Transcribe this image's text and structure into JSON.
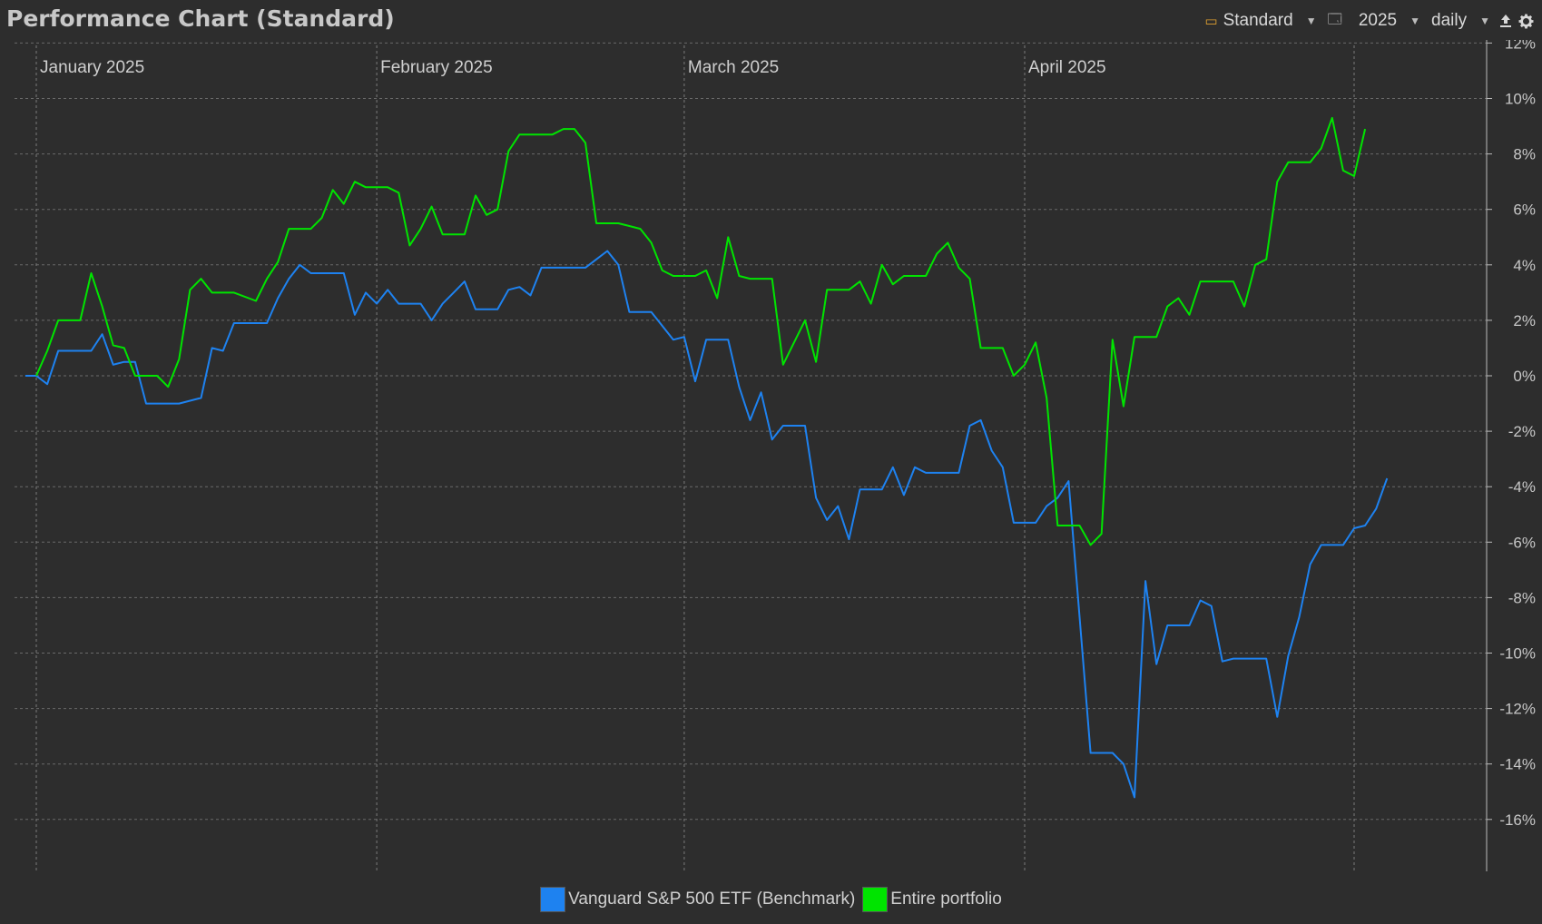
{
  "window": {
    "title": "Performance Chart (Standard)"
  },
  "toolbar": {
    "view_label": "Standard",
    "year_label": "2025",
    "interval_label": "daily",
    "icons": [
      "calendar-icon",
      "window-icon",
      "export-icon",
      "gear-icon"
    ]
  },
  "colors": {
    "background": "#2d2d2d",
    "grid": "#6a6a6a",
    "benchmark": "#1e82f0",
    "portfolio": "#00e400"
  },
  "chart_data": {
    "type": "line",
    "title": "Performance Chart (Standard)",
    "xlabel": "",
    "ylabel": "",
    "ylim": [
      -18,
      12
    ],
    "xlim": [
      "2024-12-31",
      "2025-05-02"
    ],
    "y_ticks": [
      "12%",
      "10%",
      "8%",
      "6%",
      "4%",
      "2%",
      "0%",
      "-2%",
      "-4%",
      "-6%",
      "-8%",
      "-10%",
      "-12%",
      "-14%",
      "-16%"
    ],
    "x_ticks": [
      {
        "date": "2025-01-01",
        "label": "January 2025"
      },
      {
        "date": "2025-02-01",
        "label": "February 2025"
      },
      {
        "date": "2025-03-01",
        "label": "March 2025"
      },
      {
        "date": "2025-04-01",
        "label": "April 2025"
      },
      {
        "date": "2025-05-01",
        "label": ""
      }
    ],
    "grid": true,
    "legend_position": "bottom",
    "series": [
      {
        "name": "Vanguard S&P 500 ETF (Benchmark)",
        "color": "#1e82f0",
        "points": [
          [
            "2024-12-31",
            0.0
          ],
          [
            "2025-01-01",
            0.0
          ],
          [
            "2025-01-02",
            -0.3
          ],
          [
            "2025-01-03",
            0.9
          ],
          [
            "2025-01-05",
            0.9
          ],
          [
            "2025-01-06",
            0.9
          ],
          [
            "2025-01-07",
            1.5
          ],
          [
            "2025-01-08",
            0.4
          ],
          [
            "2025-01-09",
            0.5
          ],
          [
            "2025-01-10",
            0.5
          ],
          [
            "2025-01-11",
            -1.0
          ],
          [
            "2025-01-13",
            -1.0
          ],
          [
            "2025-01-14",
            -1.0
          ],
          [
            "2025-01-16",
            -0.8
          ],
          [
            "2025-01-17",
            1.0
          ],
          [
            "2025-01-18",
            0.9
          ],
          [
            "2025-01-19",
            1.9
          ],
          [
            "2025-01-22",
            1.9
          ],
          [
            "2025-01-23",
            2.8
          ],
          [
            "2025-01-24",
            3.5
          ],
          [
            "2025-01-25",
            4.0
          ],
          [
            "2025-01-26",
            3.7
          ],
          [
            "2025-01-28",
            3.7
          ],
          [
            "2025-01-29",
            3.7
          ],
          [
            "2025-01-30",
            2.2
          ],
          [
            "2025-01-31",
            3.0
          ],
          [
            "2025-02-01",
            2.6
          ],
          [
            "2025-02-02",
            3.1
          ],
          [
            "2025-02-03",
            2.6
          ],
          [
            "2025-02-05",
            2.6
          ],
          [
            "2025-02-06",
            2.0
          ],
          [
            "2025-02-07",
            2.6
          ],
          [
            "2025-02-08",
            3.0
          ],
          [
            "2025-02-09",
            3.4
          ],
          [
            "2025-02-10",
            2.4
          ],
          [
            "2025-02-12",
            2.4
          ],
          [
            "2025-02-13",
            3.1
          ],
          [
            "2025-02-14",
            3.2
          ],
          [
            "2025-02-15",
            2.9
          ],
          [
            "2025-02-16",
            3.9
          ],
          [
            "2025-02-20",
            3.9
          ],
          [
            "2025-02-21",
            4.2
          ],
          [
            "2025-02-22",
            4.5
          ],
          [
            "2025-02-23",
            4.0
          ],
          [
            "2025-02-24",
            2.3
          ],
          [
            "2025-02-26",
            2.3
          ],
          [
            "2025-02-27",
            1.8
          ],
          [
            "2025-02-28",
            1.3
          ],
          [
            "2025-03-01",
            1.4
          ],
          [
            "2025-03-02",
            -0.2
          ],
          [
            "2025-03-03",
            1.3
          ],
          [
            "2025-03-05",
            1.3
          ],
          [
            "2025-03-06",
            -0.4
          ],
          [
            "2025-03-07",
            -1.6
          ],
          [
            "2025-03-08",
            -0.6
          ],
          [
            "2025-03-09",
            -2.3
          ],
          [
            "2025-03-10",
            -1.8
          ],
          [
            "2025-03-12",
            -1.8
          ],
          [
            "2025-03-13",
            -4.4
          ],
          [
            "2025-03-14",
            -5.2
          ],
          [
            "2025-03-15",
            -4.7
          ],
          [
            "2025-03-16",
            -5.9
          ],
          [
            "2025-03-17",
            -4.1
          ],
          [
            "2025-03-19",
            -4.1
          ],
          [
            "2025-03-20",
            -3.3
          ],
          [
            "2025-03-21",
            -4.3
          ],
          [
            "2025-03-22",
            -3.3
          ],
          [
            "2025-03-23",
            -3.5
          ],
          [
            "2025-03-26",
            -3.5
          ],
          [
            "2025-03-27",
            -1.8
          ],
          [
            "2025-03-28",
            -1.6
          ],
          [
            "2025-03-29",
            -2.7
          ],
          [
            "2025-03-30",
            -3.3
          ],
          [
            "2025-03-31",
            -5.3
          ],
          [
            "2025-04-02",
            -5.3
          ],
          [
            "2025-04-03",
            -4.7
          ],
          [
            "2025-04-04",
            -4.4
          ],
          [
            "2025-04-05",
            -3.8
          ],
          [
            "2025-04-07",
            -13.6
          ],
          [
            "2025-04-09",
            -13.6
          ],
          [
            "2025-04-10",
            -14.0
          ],
          [
            "2025-04-11",
            -15.2
          ],
          [
            "2025-04-12",
            -7.4
          ],
          [
            "2025-04-13",
            -10.4
          ],
          [
            "2025-04-14",
            -9.0
          ],
          [
            "2025-04-16",
            -9.0
          ],
          [
            "2025-04-17",
            -8.1
          ],
          [
            "2025-04-18",
            -8.3
          ],
          [
            "2025-04-19",
            -10.3
          ],
          [
            "2025-04-20",
            -10.2
          ],
          [
            "2025-04-23",
            -10.2
          ],
          [
            "2025-04-24",
            -12.3
          ],
          [
            "2025-04-25",
            -10.1
          ],
          [
            "2025-04-26",
            -8.7
          ],
          [
            "2025-04-27",
            -6.8
          ],
          [
            "2025-04-28",
            -6.1
          ],
          [
            "2025-04-30",
            -6.1
          ],
          [
            "2025-05-01",
            -5.5
          ],
          [
            "2025-05-02",
            -5.4
          ],
          [
            "2025-05-03",
            -4.8
          ],
          [
            "2025-05-04",
            -3.7
          ]
        ]
      },
      {
        "name": "Entire portfolio",
        "color": "#00e400",
        "points": [
          [
            "2025-01-01",
            0.0
          ],
          [
            "2025-01-02",
            0.9
          ],
          [
            "2025-01-03",
            2.0
          ],
          [
            "2025-01-05",
            2.0
          ],
          [
            "2025-01-06",
            3.7
          ],
          [
            "2025-01-07",
            2.5
          ],
          [
            "2025-01-08",
            1.1
          ],
          [
            "2025-01-09",
            1.0
          ],
          [
            "2025-01-10",
            0.0
          ],
          [
            "2025-01-12",
            0.0
          ],
          [
            "2025-01-13",
            -0.4
          ],
          [
            "2025-01-14",
            0.6
          ],
          [
            "2025-01-15",
            3.1
          ],
          [
            "2025-01-16",
            3.5
          ],
          [
            "2025-01-17",
            3.0
          ],
          [
            "2025-01-19",
            3.0
          ],
          [
            "2025-01-21",
            2.7
          ],
          [
            "2025-01-22",
            3.5
          ],
          [
            "2025-01-23",
            4.1
          ],
          [
            "2025-01-24",
            5.3
          ],
          [
            "2025-01-26",
            5.3
          ],
          [
            "2025-01-27",
            5.7
          ],
          [
            "2025-01-28",
            6.7
          ],
          [
            "2025-01-29",
            6.2
          ],
          [
            "2025-01-30",
            7.0
          ],
          [
            "2025-01-31",
            6.8
          ],
          [
            "2025-02-02",
            6.8
          ],
          [
            "2025-02-03",
            6.6
          ],
          [
            "2025-02-04",
            4.7
          ],
          [
            "2025-02-05",
            5.3
          ],
          [
            "2025-02-06",
            6.1
          ],
          [
            "2025-02-07",
            5.1
          ],
          [
            "2025-02-09",
            5.1
          ],
          [
            "2025-02-10",
            6.5
          ],
          [
            "2025-02-11",
            5.8
          ],
          [
            "2025-02-12",
            6.0
          ],
          [
            "2025-02-13",
            8.1
          ],
          [
            "2025-02-14",
            8.7
          ],
          [
            "2025-02-17",
            8.7
          ],
          [
            "2025-02-18",
            8.9
          ],
          [
            "2025-02-19",
            8.9
          ],
          [
            "2025-02-20",
            8.4
          ],
          [
            "2025-02-21",
            5.5
          ],
          [
            "2025-02-23",
            5.5
          ],
          [
            "2025-02-24",
            5.4
          ],
          [
            "2025-02-25",
            5.3
          ],
          [
            "2025-02-26",
            4.8
          ],
          [
            "2025-02-27",
            3.8
          ],
          [
            "2025-02-28",
            3.6
          ],
          [
            "2025-03-02",
            3.6
          ],
          [
            "2025-03-03",
            3.8
          ],
          [
            "2025-03-04",
            2.8
          ],
          [
            "2025-03-05",
            5.0
          ],
          [
            "2025-03-06",
            3.6
          ],
          [
            "2025-03-07",
            3.5
          ],
          [
            "2025-03-09",
            3.5
          ],
          [
            "2025-03-10",
            0.4
          ],
          [
            "2025-03-11",
            1.2
          ],
          [
            "2025-03-12",
            2.0
          ],
          [
            "2025-03-13",
            0.5
          ],
          [
            "2025-03-14",
            3.1
          ],
          [
            "2025-03-16",
            3.1
          ],
          [
            "2025-03-17",
            3.4
          ],
          [
            "2025-03-18",
            2.6
          ],
          [
            "2025-03-19",
            4.0
          ],
          [
            "2025-03-20",
            3.3
          ],
          [
            "2025-03-21",
            3.6
          ],
          [
            "2025-03-23",
            3.6
          ],
          [
            "2025-03-24",
            4.4
          ],
          [
            "2025-03-25",
            4.8
          ],
          [
            "2025-03-26",
            3.9
          ],
          [
            "2025-03-27",
            3.5
          ],
          [
            "2025-03-28",
            1.0
          ],
          [
            "2025-03-30",
            1.0
          ],
          [
            "2025-03-31",
            0.0
          ],
          [
            "2025-04-01",
            0.4
          ],
          [
            "2025-04-02",
            1.2
          ],
          [
            "2025-04-03",
            -0.8
          ],
          [
            "2025-04-04",
            -5.4
          ],
          [
            "2025-04-06",
            -5.4
          ],
          [
            "2025-04-07",
            -6.1
          ],
          [
            "2025-04-08",
            -5.7
          ],
          [
            "2025-04-09",
            1.3
          ],
          [
            "2025-04-10",
            -1.1
          ],
          [
            "2025-04-11",
            1.4
          ],
          [
            "2025-04-13",
            1.4
          ],
          [
            "2025-04-14",
            2.5
          ],
          [
            "2025-04-15",
            2.8
          ],
          [
            "2025-04-16",
            2.2
          ],
          [
            "2025-04-17",
            3.4
          ],
          [
            "2025-04-20",
            3.4
          ],
          [
            "2025-04-21",
            2.5
          ],
          [
            "2025-04-22",
            4.0
          ],
          [
            "2025-04-23",
            4.2
          ],
          [
            "2025-04-24",
            7.0
          ],
          [
            "2025-04-25",
            7.7
          ],
          [
            "2025-04-27",
            7.7
          ],
          [
            "2025-04-28",
            8.2
          ],
          [
            "2025-04-29",
            9.3
          ],
          [
            "2025-04-30",
            7.4
          ],
          [
            "2025-05-01",
            7.2
          ],
          [
            "2025-05-02",
            8.9
          ]
        ]
      }
    ]
  },
  "legend": {
    "benchmark_label": "Vanguard S&P 500 ETF (Benchmark)",
    "portfolio_label": "Entire portfolio"
  }
}
